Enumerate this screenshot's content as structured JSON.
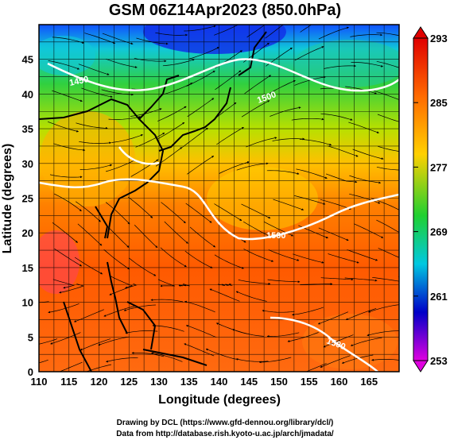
{
  "title": "GSM 06Z14Apr2023 (850.0hPa)",
  "xaxis": {
    "label": "Longitude (degrees)",
    "ticks": [
      "110",
      "115",
      "120",
      "125",
      "130",
      "135",
      "140",
      "145",
      "150",
      "155",
      "160",
      "165"
    ]
  },
  "yaxis": {
    "label": "Latitude  (degrees)",
    "ticks": [
      "0",
      "5",
      "10",
      "15",
      "20",
      "25",
      "30",
      "35",
      "40",
      "45"
    ]
  },
  "colorbar": {
    "labels": [
      "293",
      "285",
      "277",
      "269",
      "261",
      "253"
    ],
    "colors": [
      "#e00000",
      "#ff6a00",
      "#ffc800",
      "#30d000",
      "#00c8e0",
      "#0000c8",
      "#e000e0"
    ]
  },
  "contour_labels": [
    "1450",
    "1500",
    "1500",
    "1500"
  ],
  "footer": {
    "line1": "Drawing by DCL (https://www.gfd-dennou.org/library/dcl/)",
    "line2": "Data from http://database.rish.kyoto-u.ac.jp/arch/jmadata/"
  }
}
